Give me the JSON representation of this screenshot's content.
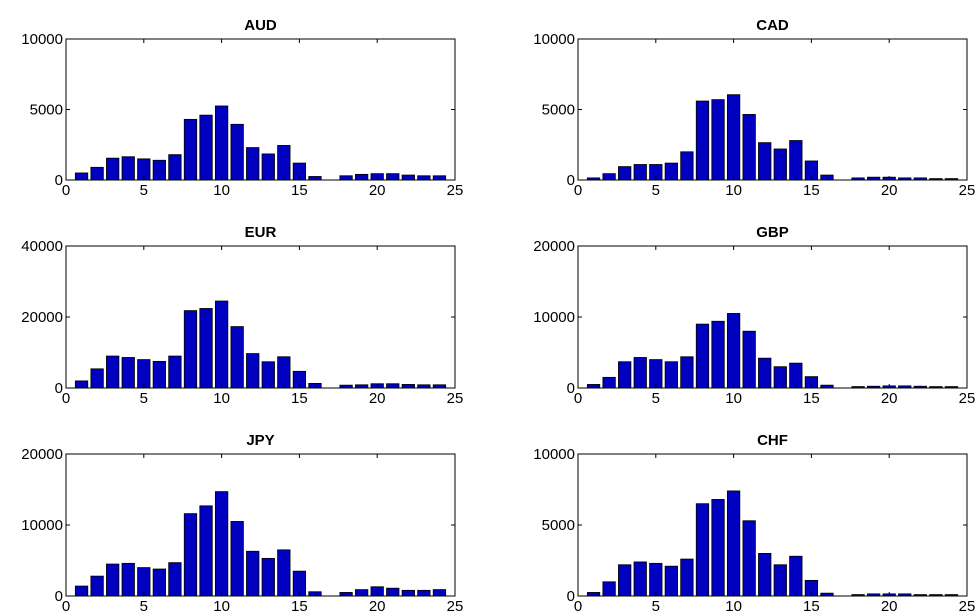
{
  "chart_data": [
    {
      "type": "bar",
      "title": "AUD",
      "x": [
        1,
        2,
        3,
        4,
        5,
        6,
        7,
        8,
        9,
        10,
        11,
        12,
        13,
        14,
        15,
        16,
        17,
        18,
        19,
        20,
        21,
        22,
        23,
        24
      ],
      "values": [
        500,
        900,
        1550,
        1650,
        1500,
        1400,
        1800,
        4300,
        4600,
        5250,
        3950,
        2300,
        1850,
        2450,
        1200,
        250,
        0,
        300,
        400,
        450,
        450,
        350,
        300,
        300
      ],
      "xlim": [
        0,
        25
      ],
      "ylim": [
        0,
        10000
      ],
      "xticks": [
        "0",
        "5",
        "10",
        "15",
        "20",
        "25"
      ],
      "yticks": [
        "0",
        "5000",
        "10000"
      ]
    },
    {
      "type": "bar",
      "title": "CAD",
      "x": [
        1,
        2,
        3,
        4,
        5,
        6,
        7,
        8,
        9,
        10,
        11,
        12,
        13,
        14,
        15,
        16,
        17,
        18,
        19,
        20,
        21,
        22,
        23,
        24
      ],
      "values": [
        150,
        450,
        950,
        1100,
        1100,
        1200,
        2000,
        5600,
        5700,
        6050,
        4650,
        2650,
        2200,
        2800,
        1350,
        350,
        0,
        150,
        200,
        200,
        150,
        150,
        100,
        100
      ],
      "xlim": [
        0,
        25
      ],
      "ylim": [
        0,
        10000
      ],
      "xticks": [
        "0",
        "5",
        "10",
        "15",
        "20",
        "25"
      ],
      "yticks": [
        "0",
        "5000",
        "10000"
      ]
    },
    {
      "type": "bar",
      "title": "EUR",
      "x": [
        1,
        2,
        3,
        4,
        5,
        6,
        7,
        8,
        9,
        10,
        11,
        12,
        13,
        14,
        15,
        16,
        17,
        18,
        19,
        20,
        21,
        22,
        23,
        24
      ],
      "values": [
        2000,
        5400,
        9000,
        8600,
        8000,
        7500,
        9000,
        21800,
        22400,
        24500,
        17300,
        9700,
        7400,
        8800,
        4700,
        1300,
        0,
        800,
        900,
        1200,
        1200,
        1000,
        900,
        900
      ],
      "xlim": [
        0,
        25
      ],
      "ylim": [
        0,
        40000
      ],
      "xticks": [
        "0",
        "5",
        "10",
        "15",
        "20",
        "25"
      ],
      "yticks": [
        "0",
        "20000",
        "40000"
      ]
    },
    {
      "type": "bar",
      "title": "GBP",
      "x": [
        1,
        2,
        3,
        4,
        5,
        6,
        7,
        8,
        9,
        10,
        11,
        12,
        13,
        14,
        15,
        16,
        17,
        18,
        19,
        20,
        21,
        22,
        23,
        24
      ],
      "values": [
        500,
        1500,
        3700,
        4300,
        4000,
        3700,
        4400,
        9000,
        9400,
        10500,
        8000,
        4200,
        3000,
        3500,
        1600,
        400,
        0,
        200,
        250,
        300,
        300,
        250,
        200,
        200
      ],
      "xlim": [
        0,
        25
      ],
      "ylim": [
        0,
        20000
      ],
      "xticks": [
        "0",
        "5",
        "10",
        "15",
        "20",
        "25"
      ],
      "yticks": [
        "0",
        "10000",
        "20000"
      ]
    },
    {
      "type": "bar",
      "title": "JPY",
      "x": [
        1,
        2,
        3,
        4,
        5,
        6,
        7,
        8,
        9,
        10,
        11,
        12,
        13,
        14,
        15,
        16,
        17,
        18,
        19,
        20,
        21,
        22,
        23,
        24
      ],
      "values": [
        1400,
        2800,
        4500,
        4600,
        4000,
        3800,
        4700,
        11600,
        12700,
        14700,
        10500,
        6300,
        5300,
        6500,
        3500,
        600,
        0,
        500,
        900,
        1300,
        1100,
        800,
        800,
        900
      ],
      "xlim": [
        0,
        25
      ],
      "ylim": [
        0,
        20000
      ],
      "xticks": [
        "0",
        "5",
        "10",
        "15",
        "20",
        "25"
      ],
      "yticks": [
        "0",
        "10000",
        "20000"
      ]
    },
    {
      "type": "bar",
      "title": "CHF",
      "x": [
        1,
        2,
        3,
        4,
        5,
        6,
        7,
        8,
        9,
        10,
        11,
        12,
        13,
        14,
        15,
        16,
        17,
        18,
        19,
        20,
        21,
        22,
        23,
        24
      ],
      "values": [
        250,
        1000,
        2200,
        2400,
        2300,
        2100,
        2600,
        6500,
        6800,
        7400,
        5300,
        3000,
        2200,
        2800,
        1100,
        200,
        0,
        100,
        150,
        150,
        150,
        100,
        100,
        100
      ],
      "xlim": [
        0,
        25
      ],
      "ylim": [
        0,
        10000
      ],
      "xticks": [
        "0",
        "5",
        "10",
        "15",
        "20",
        "25"
      ],
      "yticks": [
        "0",
        "5000",
        "10000"
      ]
    }
  ]
}
